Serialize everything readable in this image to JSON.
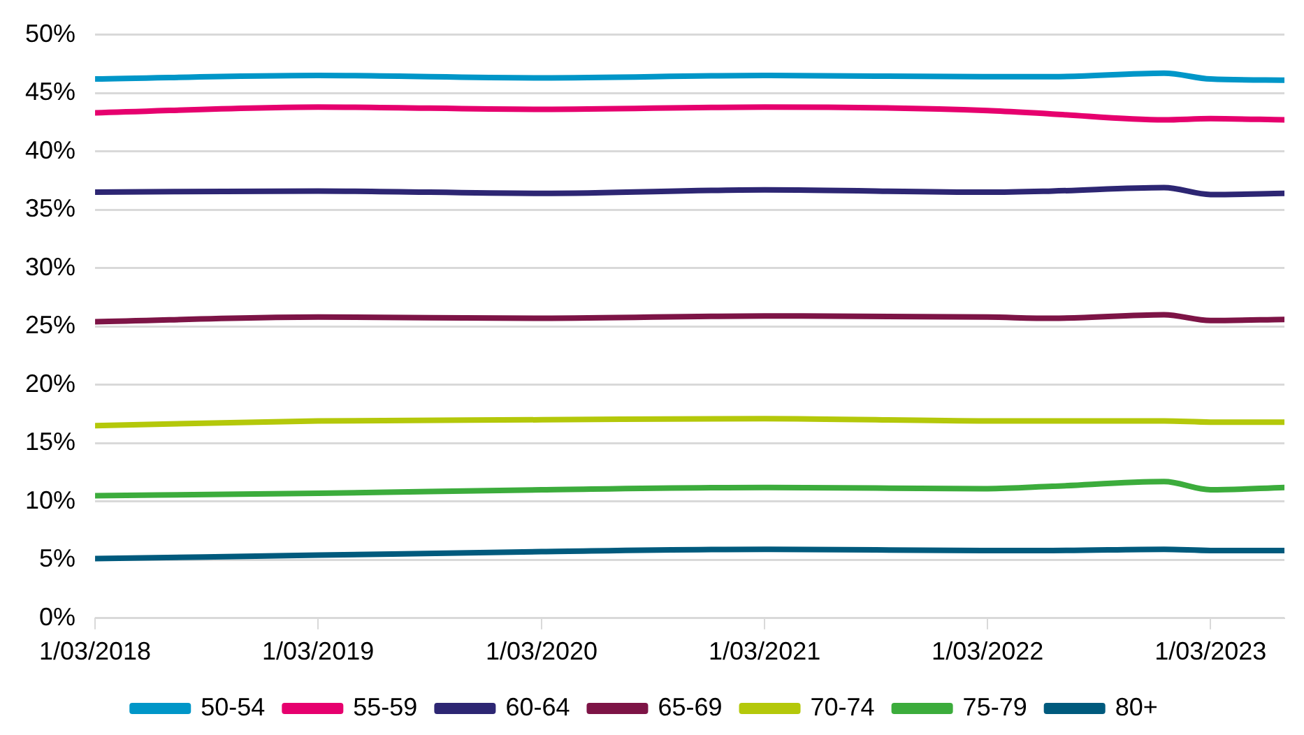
{
  "chart_data": {
    "type": "line",
    "x": [
      "2018-03-01",
      "2019-03-01",
      "2020-03-01",
      "2021-03-01",
      "2022-03-01",
      "2022-06-15",
      "2022-12-15",
      "2023-03-01",
      "2023-06-30"
    ],
    "series": [
      {
        "name": "50-54",
        "color": "#0096c8",
        "values": [
          46.2,
          46.5,
          46.3,
          46.5,
          46.4,
          46.4,
          46.7,
          46.2,
          46.1
        ]
      },
      {
        "name": "55-59",
        "color": "#e6006e",
        "values": [
          43.3,
          43.8,
          43.6,
          43.8,
          43.5,
          43.2,
          42.7,
          42.8,
          42.7
        ]
      },
      {
        "name": "60-64",
        "color": "#2d2673",
        "values": [
          36.5,
          36.6,
          36.4,
          36.7,
          36.5,
          36.6,
          36.9,
          36.3,
          36.4
        ]
      },
      {
        "name": "65-69",
        "color": "#7d1446",
        "values": [
          25.4,
          25.8,
          25.7,
          25.9,
          25.8,
          25.7,
          26.0,
          25.5,
          25.6
        ]
      },
      {
        "name": "70-74",
        "color": "#b4c80a",
        "values": [
          16.5,
          16.9,
          17.0,
          17.1,
          16.9,
          16.9,
          16.9,
          16.8,
          16.8
        ]
      },
      {
        "name": "75-79",
        "color": "#3cac3c",
        "values": [
          10.5,
          10.7,
          11.0,
          11.2,
          11.1,
          11.3,
          11.7,
          11.0,
          11.2
        ]
      },
      {
        "name": "80+",
        "color": "#005a7d",
        "values": [
          5.1,
          5.4,
          5.7,
          5.9,
          5.8,
          5.8,
          5.9,
          5.8,
          5.8
        ]
      }
    ],
    "xlim": [
      "2018-03-01",
      "2023-06-30"
    ],
    "xticks": [
      {
        "value": "2018-03-01",
        "label": "1/03/2018"
      },
      {
        "value": "2019-03-01",
        "label": "1/03/2019"
      },
      {
        "value": "2020-03-01",
        "label": "1/03/2020"
      },
      {
        "value": "2021-03-01",
        "label": "1/03/2021"
      },
      {
        "value": "2022-03-01",
        "label": "1/03/2022"
      },
      {
        "value": "2023-03-01",
        "label": "1/03/2023"
      }
    ],
    "ylim": [
      0,
      50
    ],
    "yticks": [
      {
        "value": 0,
        "label": "0%"
      },
      {
        "value": 5,
        "label": "5%"
      },
      {
        "value": 10,
        "label": "10%"
      },
      {
        "value": 15,
        "label": "15%"
      },
      {
        "value": 20,
        "label": "20%"
      },
      {
        "value": 25,
        "label": "25%"
      },
      {
        "value": 30,
        "label": "30%"
      },
      {
        "value": 35,
        "label": "35%"
      },
      {
        "value": 40,
        "label": "40%"
      },
      {
        "value": 45,
        "label": "45%"
      },
      {
        "value": 50,
        "label": "50%"
      }
    ],
    "grid": "y",
    "legend": "bottom",
    "marker": "none",
    "line_style": "solid"
  }
}
